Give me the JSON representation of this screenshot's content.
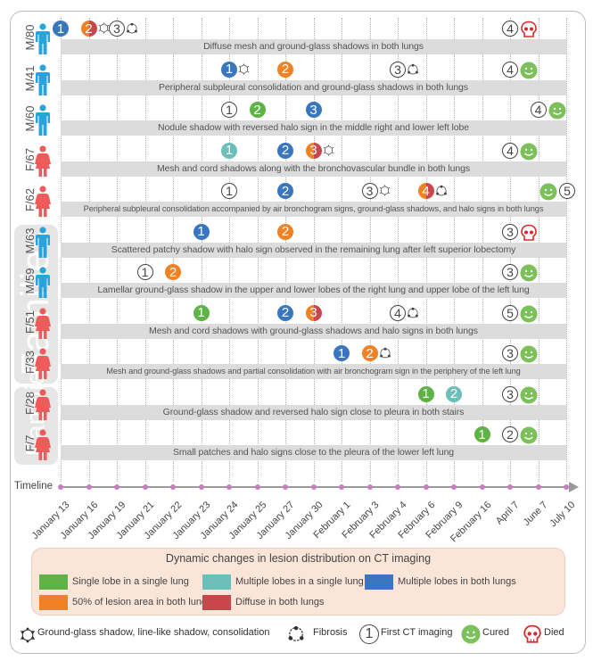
{
  "colors": {
    "single_lobe_single_lung": "#5fb246",
    "multiple_lobes_single_lung": "#6cbfb8",
    "multiple_lobes_both_lungs": "#3a76c0",
    "fifty_percent_both_lungs": "#f08225",
    "diffuse_both_lungs": "#c9474c",
    "male": "#29a3dc",
    "female": "#ef5a5a",
    "cured": "#7cc05a",
    "died": "#d62b2b",
    "timeline_dot": "#c77dc0"
  },
  "timeline": {
    "label": "Timeline",
    "dates": [
      "January 13",
      "January 16",
      "January 19",
      "January 21",
      "January 22",
      "January 23",
      "January 24",
      "January 25",
      "January 27",
      "January 30",
      "February 1",
      "February 3",
      "February 4",
      "February 6",
      "February 9",
      "February 16",
      "April 7",
      "June 7",
      "July 10"
    ]
  },
  "families": [
    {
      "label": "Families",
      "rows": [
        5,
        6,
        7,
        8
      ]
    },
    {
      "label": "Families",
      "rows": [
        9,
        10
      ]
    }
  ],
  "patients": [
    {
      "label": "M/80",
      "sex": "male",
      "description": "Diffuse mesh and ground-glass shadows in both lungs",
      "events": [
        {
          "col": 0,
          "num": "1",
          "style": "multiple_lobes_both_lungs"
        },
        {
          "col": 1,
          "num": "2",
          "style": "split_orange_red",
          "extra": "ggo-icon"
        },
        {
          "col": 2,
          "num": "3",
          "style": "outline",
          "extra": "fibrosis-icon"
        },
        {
          "col": 16,
          "num": "4",
          "style": "outline",
          "outcome": "died"
        }
      ]
    },
    {
      "label": "M/41",
      "sex": "male",
      "description": "Peripheral subpleural consolidation and ground-glass shadows in both lungs",
      "events": [
        {
          "col": 6,
          "num": "1",
          "style": "multiple_lobes_both_lungs",
          "extra": "ggo-icon"
        },
        {
          "col": 8,
          "num": "2",
          "style": "fifty_percent_both_lungs"
        },
        {
          "col": 12,
          "num": "3",
          "style": "outline",
          "extra": "fibrosis-icon"
        },
        {
          "col": 16,
          "num": "4",
          "style": "outline",
          "outcome": "cured"
        }
      ]
    },
    {
      "label": "M/60",
      "sex": "male",
      "description": "Nodule shadow with reversed halo sign in the middle right and lower left lobe",
      "events": [
        {
          "col": 6,
          "num": "1",
          "style": "outline"
        },
        {
          "col": 7,
          "num": "2",
          "style": "single_lobe_single_lung"
        },
        {
          "col": 9,
          "num": "3",
          "style": "multiple_lobes_both_lungs"
        },
        {
          "col": 17,
          "num": "4",
          "style": "outline",
          "outcome": "cured"
        }
      ]
    },
    {
      "label": "F/67",
      "sex": "female",
      "description": "Mesh and cord shadows along with the bronchovascular bundle in both lungs",
      "events": [
        {
          "col": 6,
          "num": "1",
          "style": "multiple_lobes_single_lung"
        },
        {
          "col": 8,
          "num": "2",
          "style": "multiple_lobes_both_lungs"
        },
        {
          "col": 9,
          "num": "3",
          "style": "split_orange_red",
          "extra": "ggo-icon"
        },
        {
          "col": 16,
          "num": "4",
          "style": "outline",
          "outcome": "cured"
        }
      ]
    },
    {
      "label": "F/62",
      "sex": "female",
      "description": "Peripheral subpleural consolidation accompanied by air bronchogram signs, ground-glass shadows, and halo signs in both lungs",
      "events": [
        {
          "col": 6,
          "num": "1",
          "style": "outline"
        },
        {
          "col": 8,
          "num": "2",
          "style": "multiple_lobes_both_lungs"
        },
        {
          "col": 11,
          "num": "3",
          "style": "outline",
          "extra": "ggo-icon"
        },
        {
          "col": 13,
          "num": "4",
          "style": "split_orange_red",
          "extra": "fibrosis-icon"
        },
        {
          "col": 18,
          "num": "5",
          "style": "outline",
          "outcome": "cured",
          "outcome_before": true
        }
      ]
    },
    {
      "label": "M/63",
      "sex": "male",
      "description": "Scattered patchy shadow with halo sign observed in the remaining lung after left superior lobectomy",
      "events": [
        {
          "col": 5,
          "num": "1",
          "style": "multiple_lobes_both_lungs"
        },
        {
          "col": 8,
          "num": "2",
          "style": "fifty_percent_both_lungs"
        },
        {
          "col": 16,
          "num": "3",
          "style": "outline",
          "outcome": "died"
        }
      ]
    },
    {
      "label": "M/59",
      "sex": "male",
      "description": "Lamellar ground-glass shadow in the upper and lower lobes of the right lung and upper lobe of the left lung",
      "events": [
        {
          "col": 3,
          "num": "1",
          "style": "outline"
        },
        {
          "col": 4,
          "num": "2",
          "style": "fifty_percent_both_lungs"
        },
        {
          "col": 16,
          "num": "3",
          "style": "outline",
          "outcome": "cured"
        }
      ]
    },
    {
      "label": "F/51",
      "sex": "female",
      "description": "Mesh and cord shadows with ground-glass shadows and halo signs in both lungs",
      "events": [
        {
          "col": 5,
          "num": "1",
          "style": "single_lobe_single_lung"
        },
        {
          "col": 8,
          "num": "2",
          "style": "multiple_lobes_both_lungs"
        },
        {
          "col": 9,
          "num": "3",
          "style": "split_orange_red"
        },
        {
          "col": 12,
          "num": "4",
          "style": "outline",
          "extra": "fibrosis-icon"
        },
        {
          "col": 16,
          "num": "5",
          "style": "outline",
          "outcome": "cured"
        }
      ]
    },
    {
      "label": "F/33",
      "sex": "female",
      "description": "Mesh and ground-glass shadows and partial consolidation with air bronchogram sign in the periphery of the left lung",
      "events": [
        {
          "col": 10,
          "num": "1",
          "style": "multiple_lobes_both_lungs"
        },
        {
          "col": 11,
          "num": "2",
          "style": "fifty_percent_both_lungs",
          "extra": "fibrosis-icon"
        },
        {
          "col": 16,
          "num": "3",
          "style": "outline",
          "outcome": "cured"
        }
      ]
    },
    {
      "label": "F/28",
      "sex": "female",
      "description": "Ground-glass shadow and reversed halo sign close to pleura in both stairs",
      "events": [
        {
          "col": 13,
          "num": "1",
          "style": "single_lobe_single_lung"
        },
        {
          "col": 14,
          "num": "2",
          "style": "multiple_lobes_single_lung"
        },
        {
          "col": 16,
          "num": "3",
          "style": "outline",
          "outcome": "cured"
        }
      ]
    },
    {
      "label": "F/7",
      "sex": "female",
      "description": "Small patches and halo signs close to the pleura of the lower left lung",
      "events": [
        {
          "col": 15,
          "num": "1",
          "style": "single_lobe_single_lung"
        },
        {
          "col": 16,
          "num": "2",
          "style": "outline",
          "outcome": "cured"
        }
      ]
    }
  ],
  "legend": {
    "title": "Dynamic changes in lesion distribution on CT imaging",
    "items": [
      {
        "key": "single_lobe_single_lung",
        "label": "Single lobe in a single lung"
      },
      {
        "key": "multiple_lobes_single_lung",
        "label": "Multiple lobes in a single lung"
      },
      {
        "key": "multiple_lobes_both_lungs",
        "label": "Multiple lobes in both lungs"
      },
      {
        "key": "fifty_percent_both_lungs",
        "label": "50% of lesion area in both lungs"
      },
      {
        "key": "diffuse_both_lungs",
        "label": "Diffuse in both lungs"
      }
    ]
  },
  "symbol_legend": {
    "ggo": "Ground-glass shadow, line-like shadow, consolidation",
    "fibrosis": "Fibrosis",
    "first_ct_num": "1",
    "first_ct": "First CT imaging",
    "cured": "Cured",
    "died": "Died"
  }
}
